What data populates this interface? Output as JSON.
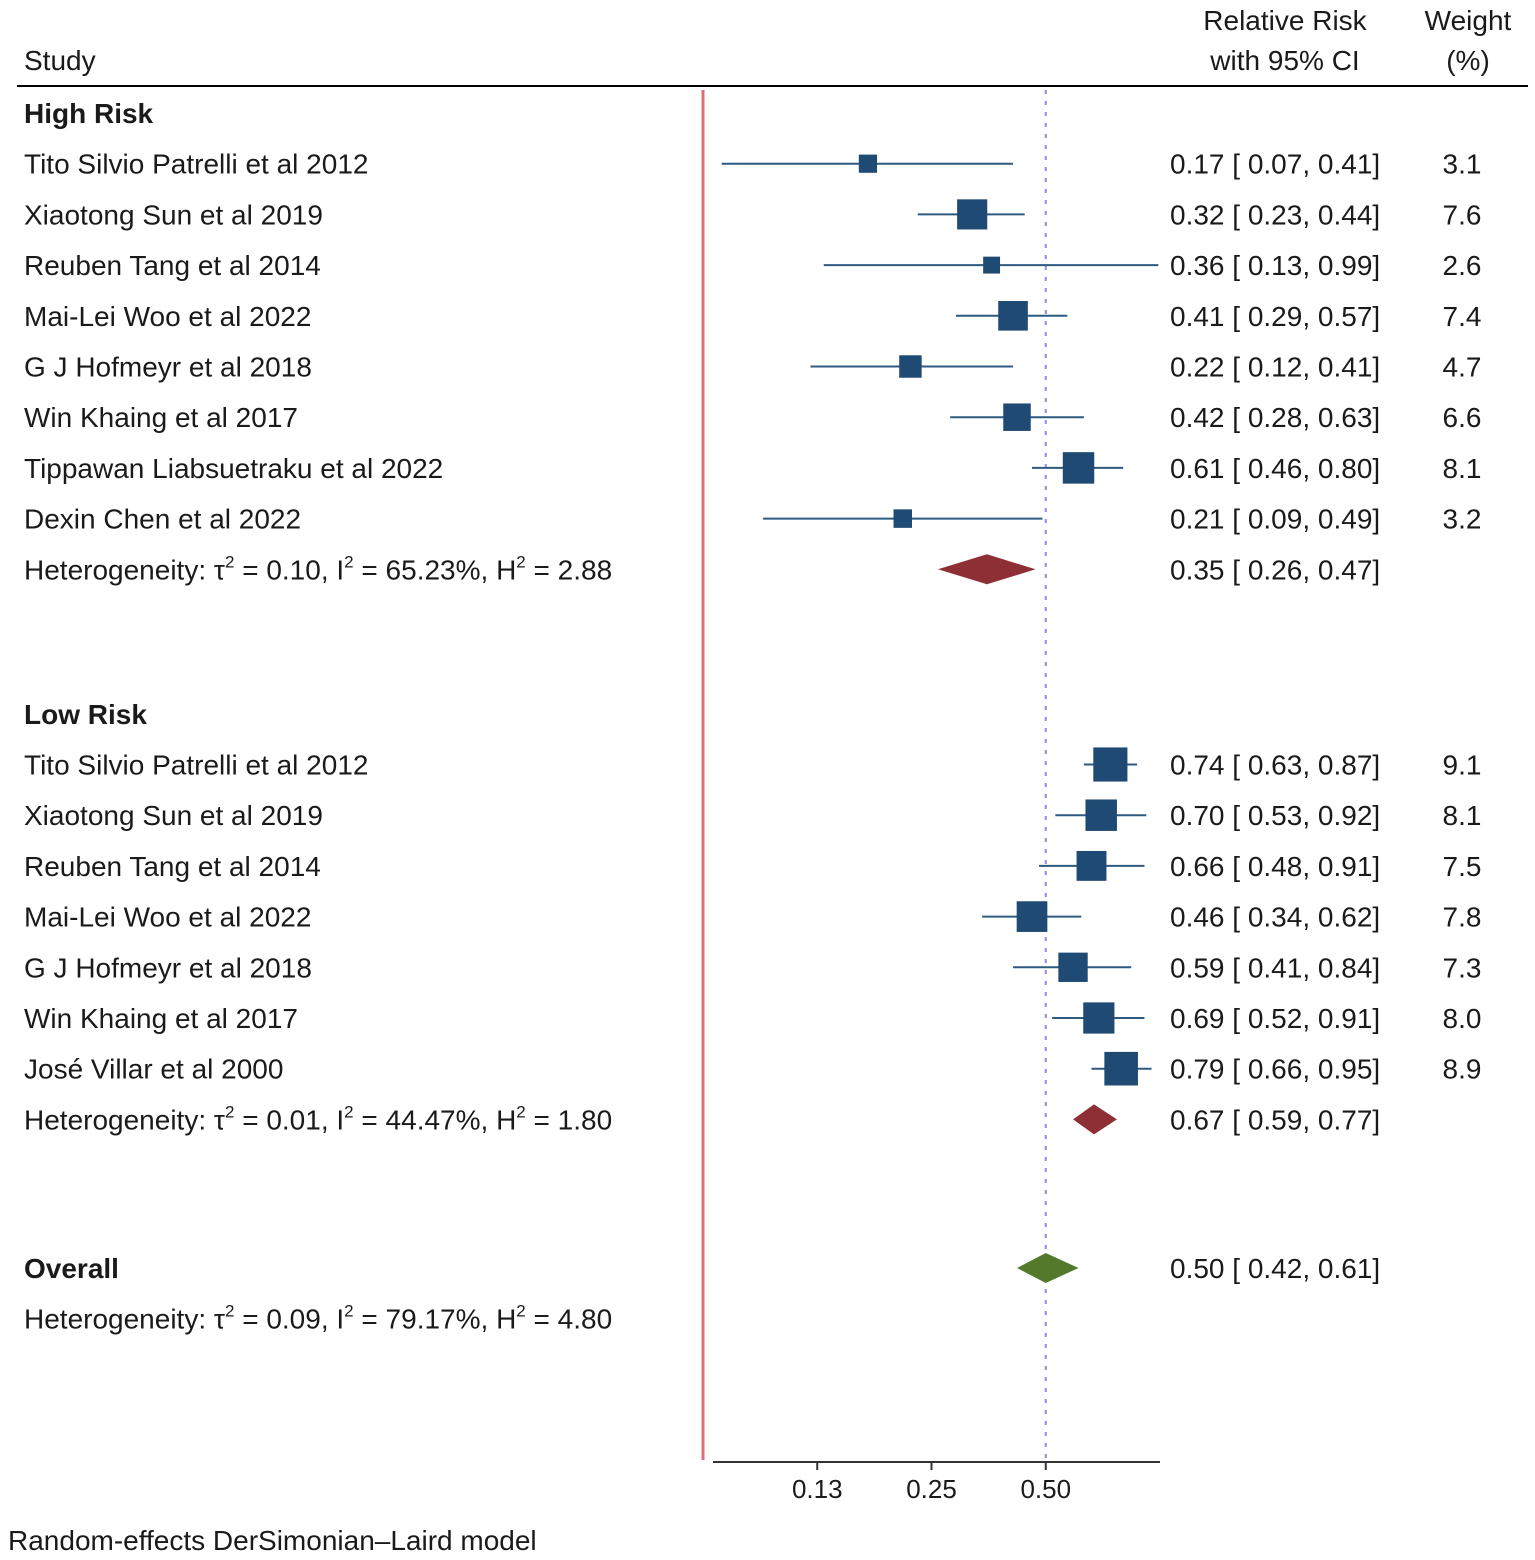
{
  "chart_data": {
    "type": "forest",
    "header": {
      "study": "Study",
      "effect_line1": "Relative Risk",
      "effect_line2": "with 95% CI",
      "weight_line1": "Weight",
      "weight_line2": "(%)"
    },
    "scale": "log2",
    "xlim": [
      0.0625,
      1.0
    ],
    "reference_value": 0.5,
    "null_line_value": 0.0625,
    "xticks": [
      {
        "value": 0.125,
        "label": "0.13"
      },
      {
        "value": 0.25,
        "label": "0.25"
      },
      {
        "value": 0.5,
        "label": "0.50"
      }
    ],
    "groups": [
      {
        "name": "High Risk",
        "studies": [
          {
            "study": "Tito Silvio Patrelli et al  2012",
            "rr": 0.17,
            "lo": 0.07,
            "hi": 0.41,
            "ci_text": "0.17 [ 0.07,  0.41]",
            "weight": "3.1"
          },
          {
            "study": "Xiaotong Sun et al 2019",
            "rr": 0.32,
            "lo": 0.23,
            "hi": 0.44,
            "ci_text": "0.32 [ 0.23,  0.44]",
            "weight": "7.6"
          },
          {
            "study": "Reuben Tang et al 2014",
            "rr": 0.36,
            "lo": 0.13,
            "hi": 0.99,
            "ci_text": "0.36 [ 0.13,  0.99]",
            "weight": "2.6"
          },
          {
            "study": "Mai-Lei Woo  et al 2022",
            "rr": 0.41,
            "lo": 0.29,
            "hi": 0.57,
            "ci_text": "0.41 [ 0.29,  0.57]",
            "weight": "7.4"
          },
          {
            "study": "G J Hofmeyr et al 2018",
            "rr": 0.22,
            "lo": 0.12,
            "hi": 0.41,
            "ci_text": "0.22 [ 0.12,  0.41]",
            "weight": "4.7"
          },
          {
            "study": "Win Khaing et al 2017",
            "rr": 0.42,
            "lo": 0.28,
            "hi": 0.63,
            "ci_text": "0.42 [ 0.28,  0.63]",
            "weight": "6.6"
          },
          {
            "study": "Tippawan Liabsuetraku et al 2022",
            "rr": 0.61,
            "lo": 0.46,
            "hi": 0.8,
            "ci_text": "0.61 [ 0.46,  0.80]",
            "weight": "8.1"
          },
          {
            "study": "Dexin Chen et al 2022",
            "rr": 0.21,
            "lo": 0.09,
            "hi": 0.49,
            "ci_text": "0.21 [ 0.09,  0.49]",
            "weight": "3.2"
          }
        ],
        "pooled": {
          "rr": 0.35,
          "lo": 0.26,
          "hi": 0.47,
          "ci_text": "0.35 [ 0.26,  0.47]"
        },
        "heterogeneity": {
          "prefix": "Heterogeneity: τ",
          "tau2": " = 0.10, I",
          "i2": " = 65.23%, H",
          "h2": " = 2.88",
          "sup": "2"
        }
      },
      {
        "name": "Low Risk",
        "studies": [
          {
            "study": "Tito Silvio Patrelli et al  2012",
            "rr": 0.74,
            "lo": 0.63,
            "hi": 0.87,
            "ci_text": "0.74 [ 0.63,  0.87]",
            "weight": "9.1"
          },
          {
            "study": "Xiaotong Sun et al 2019",
            "rr": 0.7,
            "lo": 0.53,
            "hi": 0.92,
            "ci_text": "0.70 [ 0.53,  0.92]",
            "weight": "8.1"
          },
          {
            "study": "Reuben Tang et al 2014",
            "rr": 0.66,
            "lo": 0.48,
            "hi": 0.91,
            "ci_text": "0.66 [ 0.48,  0.91]",
            "weight": "7.5"
          },
          {
            "study": "Mai-Lei Woo  et al 2022",
            "rr": 0.46,
            "lo": 0.34,
            "hi": 0.62,
            "ci_text": "0.46 [ 0.34,  0.62]",
            "weight": "7.8"
          },
          {
            "study": "G J Hofmeyr et al 2018",
            "rr": 0.59,
            "lo": 0.41,
            "hi": 0.84,
            "ci_text": "0.59 [ 0.41,  0.84]",
            "weight": "7.3"
          },
          {
            "study": "Win Khaing et al 2017",
            "rr": 0.69,
            "lo": 0.52,
            "hi": 0.91,
            "ci_text": "0.69 [ 0.52,  0.91]",
            "weight": "8.0"
          },
          {
            "study": "José Villar et al 2000",
            "rr": 0.79,
            "lo": 0.66,
            "hi": 0.95,
            "ci_text": "0.79 [ 0.66,  0.95]",
            "weight": "8.9"
          }
        ],
        "pooled": {
          "rr": 0.67,
          "lo": 0.59,
          "hi": 0.77,
          "ci_text": "0.67 [ 0.59,  0.77]"
        },
        "heterogeneity": {
          "prefix": "Heterogeneity: τ",
          "tau2": " = 0.01, I",
          "i2": " = 44.47%, H",
          "h2": " = 1.80",
          "sup": "2"
        }
      }
    ],
    "overall": {
      "label": "Overall",
      "rr": 0.5,
      "lo": 0.42,
      "hi": 0.61,
      "ci_text": "0.50 [ 0.42,  0.61]",
      "heterogeneity": {
        "prefix": "Heterogeneity: τ",
        "tau2": " = 0.09, I",
        "i2": " = 79.17%, H",
        "h2": " = 4.80",
        "sup": "2"
      }
    },
    "footnote": "Random-effects DerSimonian–Laird model",
    "colors": {
      "study_marker": "#1f4a73",
      "ci_line": "#2f5a80",
      "subgroup_diamond": "#8e2f36",
      "overall_diamond": "#55792a",
      "null_line": "#d9707a",
      "reference_line": "#8f8fdc"
    }
  }
}
